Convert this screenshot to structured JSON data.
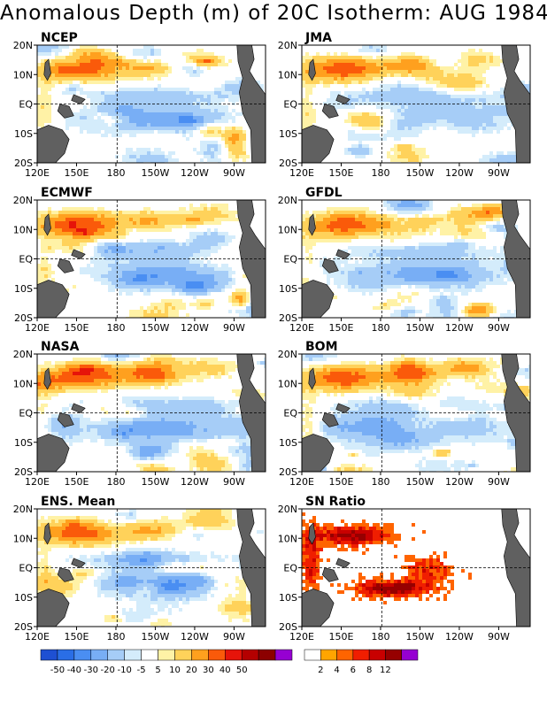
{
  "title": "Anomalous Depth (m) of 20C Isotherm: AUG 1984",
  "lat_labels": [
    "20N",
    "10N",
    "EQ",
    "10S",
    "20S"
  ],
  "lon_labels": [
    "120E",
    "150E",
    "180",
    "150W",
    "120W",
    "90W"
  ],
  "panels": [
    {
      "label": "NCEP",
      "kind": "anomaly"
    },
    {
      "label": "JMA",
      "kind": "anomaly"
    },
    {
      "label": "ECMWF",
      "kind": "anomaly"
    },
    {
      "label": "GFDL",
      "kind": "anomaly"
    },
    {
      "label": "NASA",
      "kind": "anomaly"
    },
    {
      "label": "BOM",
      "kind": "anomaly"
    },
    {
      "label": "ENS. Mean",
      "kind": "anomaly"
    },
    {
      "label": "SN Ratio",
      "kind": "snr"
    }
  ],
  "colors": {
    "land": "#606060",
    "anomaly_scale": [
      "#1e50d2",
      "#2a6ee6",
      "#4a8ef2",
      "#78aef5",
      "#a6cdf7",
      "#d4ecfb",
      "#ffffff",
      "#fff2a6",
      "#ffd25a",
      "#ffa01e",
      "#fa5a0a",
      "#e6140a",
      "#b40000",
      "#8c0000",
      "#9600d2"
    ],
    "snr_scale": [
      "#ffffff",
      "#ffa500",
      "#ff6400",
      "#f01e00",
      "#c80000",
      "#960000",
      "#9600d2"
    ]
  },
  "anomaly_ticks": [
    "-50",
    "-40",
    "-30",
    "-20",
    "-10",
    "-5",
    "5",
    "10",
    "20",
    "30",
    "40",
    "50"
  ],
  "snr_ticks": [
    "2",
    "4",
    "6",
    "8",
    "12"
  ]
}
